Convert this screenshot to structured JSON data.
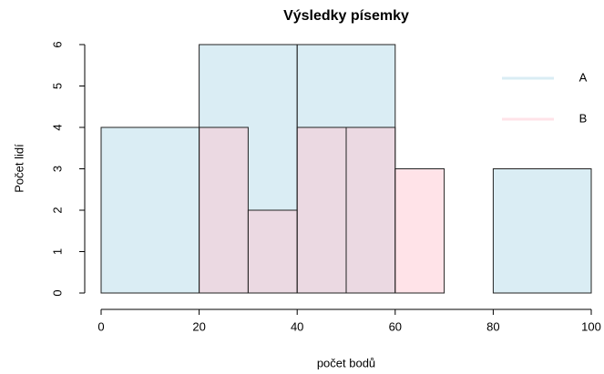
{
  "chart_data": {
    "type": "histogram",
    "title": "Výsledky písemky",
    "xlabel": "počet bodů",
    "ylabel": "Počet lidí",
    "series": [
      {
        "name": "A",
        "color": "#add8e6",
        "bins": [
          0,
          20,
          40,
          60,
          80,
          100
        ],
        "values": [
          4,
          6,
          6,
          0,
          3
        ]
      },
      {
        "name": "B",
        "color": "#ffc0cb",
        "bins": [
          20,
          30,
          40,
          50,
          60,
          70
        ],
        "values": [
          4,
          2,
          4,
          4,
          3
        ]
      }
    ],
    "xlim": [
      0,
      100
    ],
    "xticks": [
      0,
      20,
      40,
      60,
      80,
      100
    ],
    "ylim": [
      0,
      6
    ],
    "yticks": [
      0,
      1,
      2,
      3,
      4,
      5,
      6
    ],
    "legend": "topright"
  }
}
